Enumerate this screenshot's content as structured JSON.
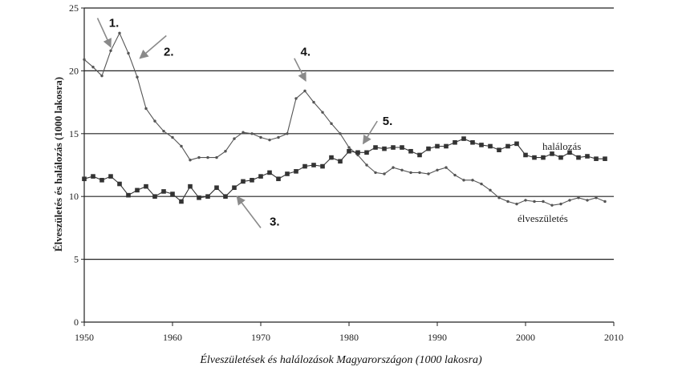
{
  "caption": "Élveszületések és halálozások Magyarországon (1000 lakosra)",
  "chart_data": {
    "type": "line",
    "title": "",
    "xlabel": "",
    "ylabel": "Élveszületés és halálozás (1000 lakosra)",
    "xlim": [
      1950,
      2010
    ],
    "ylim": [
      0,
      25
    ],
    "x_ticks": [
      "1950",
      "1960",
      "1970",
      "1980",
      "1990",
      "2000",
      "2010"
    ],
    "y_ticks": [
      "0",
      "5",
      "10",
      "15",
      "20",
      "25"
    ],
    "grid": "horizontal",
    "series": [
      {
        "name": "élveszületés",
        "marker": "dot",
        "color": "#555555",
        "x": [
          1950,
          1951,
          1952,
          1953,
          1954,
          1955,
          1956,
          1957,
          1958,
          1959,
          1960,
          1961,
          1962,
          1963,
          1964,
          1965,
          1966,
          1967,
          1968,
          1969,
          1970,
          1971,
          1972,
          1973,
          1974,
          1975,
          1976,
          1977,
          1978,
          1979,
          1980,
          1981,
          1982,
          1983,
          1984,
          1985,
          1986,
          1987,
          1988,
          1989,
          1990,
          1991,
          1992,
          1993,
          1994,
          1995,
          1996,
          1997,
          1998,
          1999,
          2000,
          2001,
          2002,
          2003,
          2004,
          2005,
          2006,
          2007,
          2008,
          2009
        ],
        "values": [
          20.9,
          20.3,
          19.6,
          21.6,
          23.0,
          21.4,
          19.5,
          17.0,
          16.0,
          15.2,
          14.7,
          14.0,
          12.9,
          13.1,
          13.1,
          13.1,
          13.6,
          14.6,
          15.1,
          15.0,
          14.7,
          14.5,
          14.7,
          15.0,
          17.8,
          18.4,
          17.5,
          16.7,
          15.8,
          15.0,
          13.9,
          13.3,
          12.5,
          11.9,
          11.8,
          12.3,
          12.1,
          11.9,
          11.9,
          11.8,
          12.1,
          12.3,
          11.7,
          11.3,
          11.3,
          11.0,
          10.5,
          9.9,
          9.6,
          9.4,
          9.7,
          9.6,
          9.6,
          9.3,
          9.4,
          9.7,
          9.9,
          9.7,
          9.9,
          9.6
        ]
      },
      {
        "name": "halálozás",
        "marker": "square",
        "color": "#333333",
        "x": [
          1950,
          1951,
          1952,
          1953,
          1954,
          1955,
          1956,
          1957,
          1958,
          1959,
          1960,
          1961,
          1962,
          1963,
          1964,
          1965,
          1966,
          1967,
          1968,
          1969,
          1970,
          1971,
          1972,
          1973,
          1974,
          1975,
          1976,
          1977,
          1978,
          1979,
          1980,
          1981,
          1982,
          1983,
          1984,
          1985,
          1986,
          1987,
          1988,
          1989,
          1990,
          1991,
          1992,
          1993,
          1994,
          1995,
          1996,
          1997,
          1998,
          1999,
          2000,
          2001,
          2002,
          2003,
          2004,
          2005,
          2006,
          2007,
          2008,
          2009
        ],
        "values": [
          11.4,
          11.6,
          11.3,
          11.6,
          11.0,
          10.1,
          10.5,
          10.8,
          10.0,
          10.4,
          10.2,
          9.6,
          10.8,
          9.9,
          10.0,
          10.7,
          10.0,
          10.7,
          11.2,
          11.3,
          11.6,
          11.9,
          11.4,
          11.8,
          12.0,
          12.4,
          12.5,
          12.4,
          13.1,
          12.8,
          13.6,
          13.5,
          13.5,
          13.9,
          13.8,
          13.9,
          13.9,
          13.6,
          13.3,
          13.8,
          14.0,
          14.0,
          14.3,
          14.6,
          14.3,
          14.1,
          14.0,
          13.7,
          14.0,
          14.2,
          13.3,
          13.1,
          13.1,
          13.4,
          13.1,
          13.5,
          13.1,
          13.2,
          13.0,
          13.0
        ]
      }
    ],
    "annotations": [
      {
        "text": "1.",
        "x": 1952.8,
        "y": 23.5
      },
      {
        "text": "2.",
        "x": 1959.0,
        "y": 21.2
      },
      {
        "text": "3.",
        "x": 1971.0,
        "y": 7.7
      },
      {
        "text": "4.",
        "x": 1974.5,
        "y": 21.2
      },
      {
        "text": "5.",
        "x": 1983.8,
        "y": 15.7
      }
    ]
  }
}
